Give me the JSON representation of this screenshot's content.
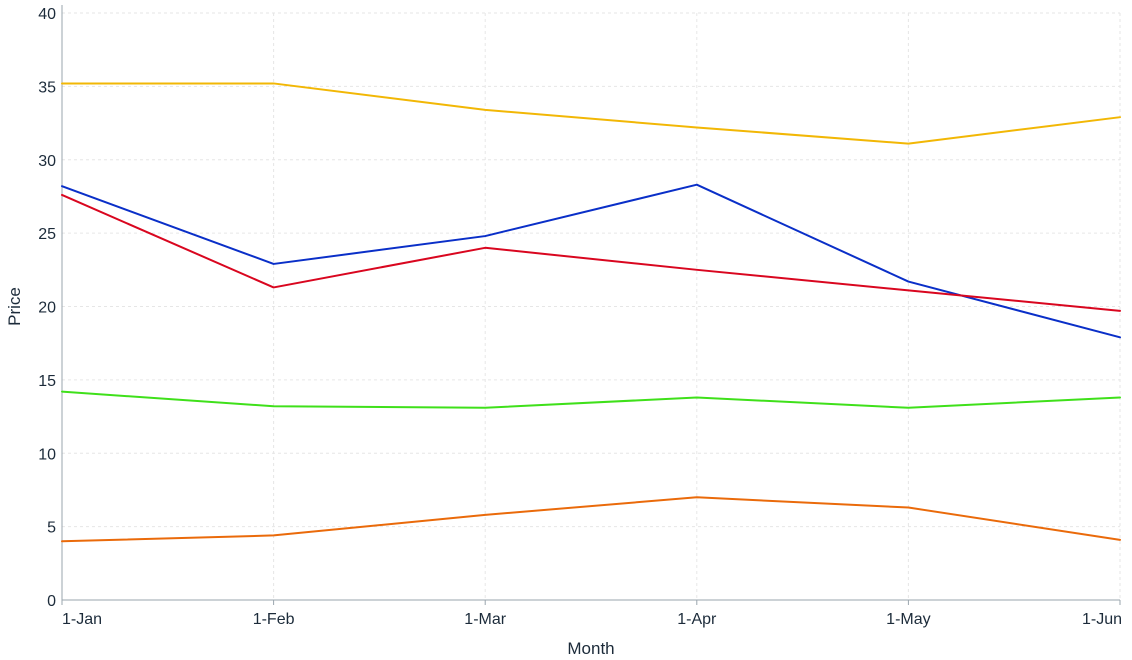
{
  "chart_data": {
    "type": "line",
    "xlabel": "Month",
    "ylabel": "Price",
    "categories": [
      "1-Jan",
      "1-Feb",
      "1-Mar",
      "1-Apr",
      "1-May",
      "1-Jun"
    ],
    "ylim": [
      0,
      40
    ],
    "yticks": [
      0,
      5,
      10,
      15,
      20,
      25,
      30,
      35,
      40
    ],
    "grid": true,
    "legend": "none",
    "series": [
      {
        "color": "#f2b705",
        "values": [
          35.2,
          35.2,
          33.4,
          32.2,
          31.1,
          32.9
        ]
      },
      {
        "color": "#0a2fc8",
        "values": [
          28.2,
          22.9,
          24.8,
          28.3,
          21.7,
          17.9
        ]
      },
      {
        "color": "#d9061f",
        "values": [
          27.6,
          21.3,
          24.0,
          22.5,
          21.1,
          19.7
        ]
      },
      {
        "color": "#3fe01a",
        "values": [
          14.2,
          13.2,
          13.1,
          13.8,
          13.1,
          13.8
        ]
      },
      {
        "color": "#ea6a0a",
        "values": [
          4.0,
          4.4,
          5.8,
          7.0,
          6.3,
          4.1
        ]
      }
    ]
  }
}
